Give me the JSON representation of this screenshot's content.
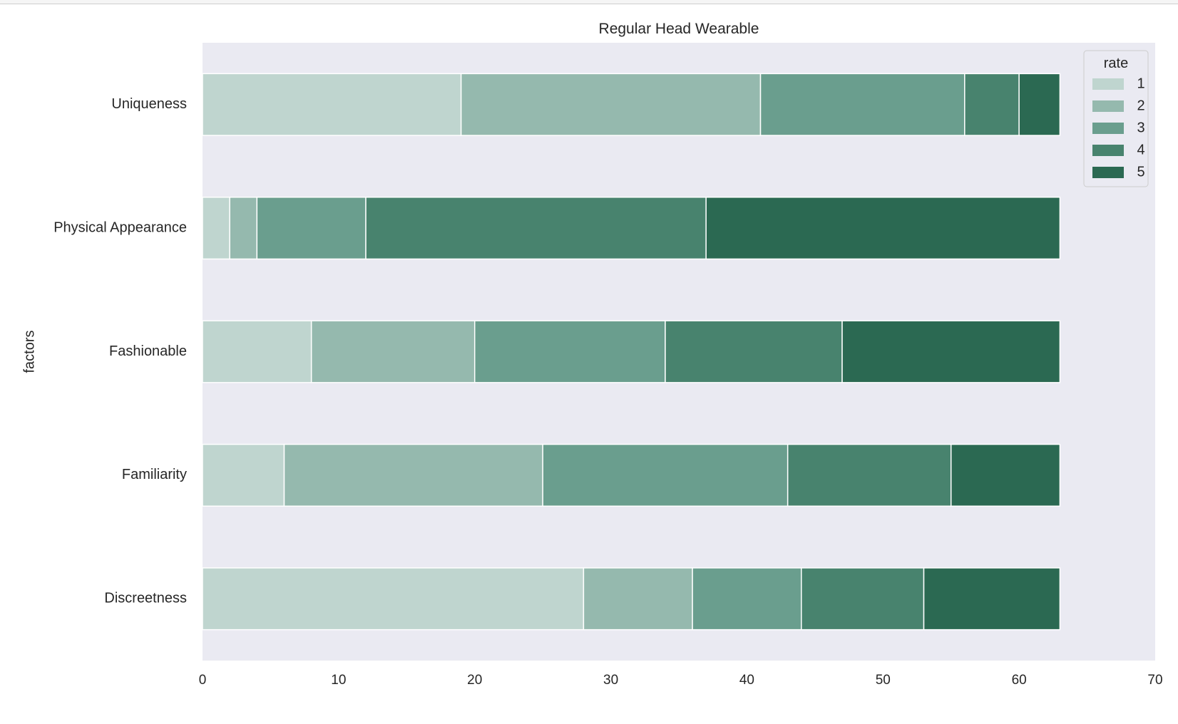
{
  "chart_data": {
    "type": "bar",
    "orientation": "horizontal",
    "stacked": true,
    "title": "Regular Head Wearable",
    "xlabel": "",
    "ylabel": "factors",
    "xlim": [
      0,
      70
    ],
    "xticks": [
      0,
      10,
      20,
      30,
      40,
      50,
      60,
      70
    ],
    "categories": [
      "Discreetness",
      "Familiarity",
      "Fashionable",
      "Physical Appearance",
      "Uniqueness"
    ],
    "legend": {
      "title": "rate",
      "placement": "top-right"
    },
    "grid": false,
    "series": [
      {
        "name": "1",
        "color": "#bfd5cf",
        "values": [
          28,
          6,
          8,
          2,
          19
        ]
      },
      {
        "name": "2",
        "color": "#95b9ae",
        "values": [
          8,
          19,
          12,
          2,
          22
        ]
      },
      {
        "name": "3",
        "color": "#6a9e8e",
        "values": [
          8,
          18,
          14,
          8,
          15
        ]
      },
      {
        "name": "4",
        "color": "#48836e",
        "values": [
          9,
          12,
          13,
          25,
          4
        ]
      },
      {
        "name": "5",
        "color": "#2b6952",
        "values": [
          10,
          8,
          16,
          26,
          3
        ]
      }
    ]
  }
}
